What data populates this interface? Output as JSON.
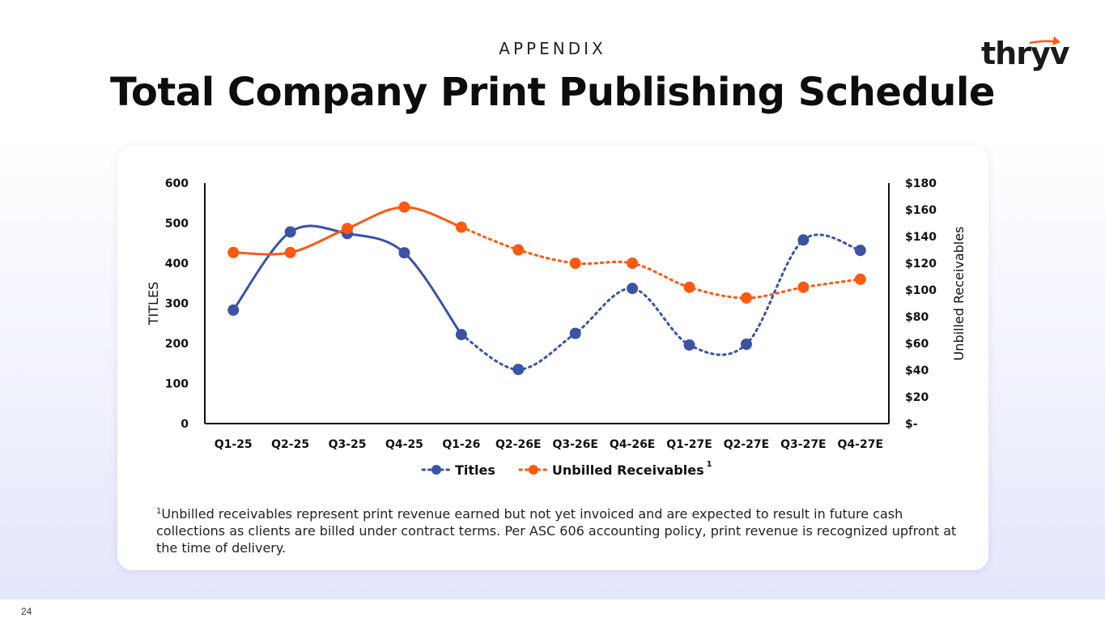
{
  "header": {
    "kicker": "APPENDIX",
    "title": "Total Company Print Publishing Schedule",
    "logo_text": "thryv"
  },
  "footnote": {
    "marker": "1",
    "text": "Unbilled receivables represent print revenue earned but not yet invoiced and are expected to result in future cash collections as clients are billed under contract terms. Per ASC 606 accounting policy, print revenue is recognized upfront at the time of delivery."
  },
  "page_number": "24",
  "chart_data": {
    "type": "line",
    "categories": [
      "Q1-25",
      "Q2-25",
      "Q3-25",
      "Q4-25",
      "Q1-26",
      "Q2-26E",
      "Q3-26E",
      "Q4-26E",
      "Q1-27E",
      "Q2-27E",
      "Q3-27E",
      "Q4-27E"
    ],
    "series": [
      {
        "name": "Titles",
        "axis": "left",
        "color": "#3a53a4",
        "values": [
          283,
          478,
          474,
          426,
          222,
          135,
          225,
          337,
          196,
          198,
          458,
          432
        ],
        "solid_through_index": 4
      },
      {
        "name": "Unbilled Receivables",
        "axis": "right",
        "color": "#fb5a10",
        "values": [
          128,
          128,
          146,
          162,
          147,
          130,
          120,
          120,
          102,
          94,
          102,
          108
        ],
        "solid_through_index": 4
      }
    ],
    "legend_superscript": "1",
    "ylabel": "TITLES",
    "y2label": "Unbilled Receivables",
    "ylim": [
      0,
      600
    ],
    "y2lim": [
      0,
      180
    ],
    "yticks": [
      "0",
      "100",
      "200",
      "300",
      "400",
      "500",
      "600"
    ],
    "y2ticks": [
      "$-",
      "$20",
      "$40",
      "$60",
      "$80",
      "$100",
      "$120",
      "$140",
      "$160",
      "$180"
    ],
    "legend_position": "bottom",
    "grid": false
  }
}
